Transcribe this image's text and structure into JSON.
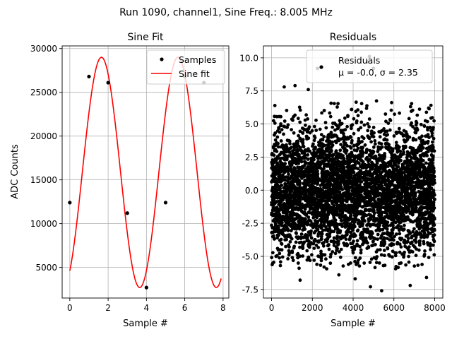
{
  "figure": {
    "suptitle": "Run 1090, channel1, Sine Freq.: 8.005 MHz"
  },
  "chart_data": [
    {
      "type": "scatter",
      "title": "Sine Fit",
      "xlabel": "Sample #",
      "ylabel": "ADC Counts",
      "xlim": [
        -0.4,
        8.3
      ],
      "ylim": [
        1500,
        30300
      ],
      "xticks": [
        0,
        2,
        4,
        6,
        8
      ],
      "yticks": [
        5000,
        10000,
        15000,
        20000,
        25000,
        30000
      ],
      "grid": true,
      "legend_position": "top-right",
      "series": [
        {
          "name": "Samples",
          "kind": "scatter",
          "color": "#000000",
          "x": [
            0,
            1,
            2,
            3,
            4,
            5,
            6,
            7
          ],
          "y": [
            12400,
            26800,
            26100,
            11200,
            2700,
            12400,
            26800,
            26100
          ]
        },
        {
          "name": "Sine fit",
          "kind": "line",
          "color": "#ff0000",
          "model": {
            "amplitude": 13150,
            "offset": 15850,
            "phase_rad": -1.025,
            "cycles_per_sample": 0.2502,
            "x_start": 0,
            "x_end": 7.9
          }
        }
      ]
    },
    {
      "type": "scatter",
      "title": "Residuals",
      "xlabel": "Sample #",
      "ylabel": "",
      "xlim": [
        -400,
        8400
      ],
      "ylim": [
        -8.15,
        10.9
      ],
      "xticks": [
        0,
        2000,
        4000,
        6000,
        8000
      ],
      "yticks": [
        -7.5,
        -5.0,
        -2.5,
        0.0,
        2.5,
        5.0,
        7.5,
        10.0
      ],
      "grid": true,
      "legend_position": "top-right",
      "series": [
        {
          "name": "Residuals\nμ = -0.0, σ = 2.35",
          "kind": "scatter",
          "color": "#000000",
          "n_points": 8000,
          "mean": 0.0,
          "sigma": 2.35,
          "x_range": [
            0,
            8000
          ],
          "outliers": [
            {
              "x": 620,
              "y": 7.8
            },
            {
              "x": 1150,
              "y": 7.9
            },
            {
              "x": 1400,
              "y": -6.8
            },
            {
              "x": 1800,
              "y": 7.6
            },
            {
              "x": 3300,
              "y": -6.4
            },
            {
              "x": 4100,
              "y": -6.7
            },
            {
              "x": 4700,
              "y": 9.7
            },
            {
              "x": 4800,
              "y": 10.1
            },
            {
              "x": 4850,
              "y": -7.3
            },
            {
              "x": 5000,
              "y": 9.2
            },
            {
              "x": 5400,
              "y": -7.6
            },
            {
              "x": 6800,
              "y": -7.2
            },
            {
              "x": 7600,
              "y": -6.6
            },
            {
              "x": 2250,
              "y": 9.2
            }
          ]
        }
      ]
    }
  ]
}
